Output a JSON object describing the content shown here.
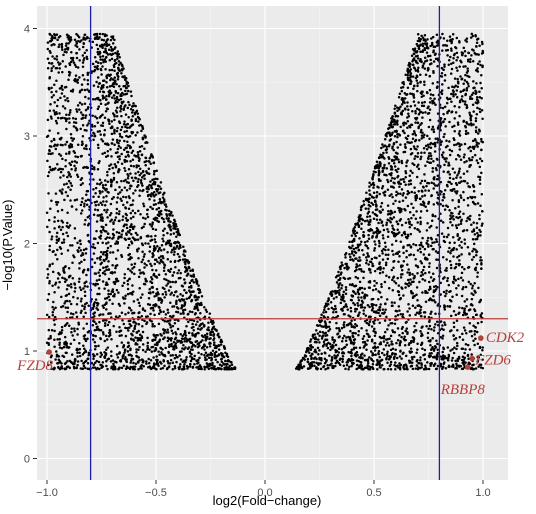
{
  "chart_data": {
    "type": "scatter",
    "title": "",
    "xlabel": "log2(Fold−change)",
    "ylabel": "−log10(P.Value)",
    "xlim": [
      -1.1,
      1.1
    ],
    "ylim": [
      -0.2,
      4.2
    ],
    "x_ticks": [
      -1.0,
      -0.5,
      0.0,
      0.5,
      1.0
    ],
    "x_tick_labels": [
      "−1.0",
      "−0.5",
      "0.0",
      "0.5",
      "1.0"
    ],
    "y_ticks": [
      0,
      1,
      2,
      3,
      4
    ],
    "y_tick_labels": [
      "0",
      "1",
      "2",
      "3",
      "4"
    ],
    "grid": true,
    "background_color": "#ebebeb",
    "point_color": "#000000",
    "highlight_color": "#b5403a",
    "threshold_line_color_vertical": "#1f1fa8",
    "threshold_line_color_horizontal": "#b5403a",
    "vertical_thresholds": [
      -0.8,
      0.8
    ],
    "horizontal_threshold": 1.3,
    "series": [
      {
        "cloud": "down-regulated",
        "x_range": [
          -1.0,
          -0.13
        ],
        "y_range": [
          0.83,
          3.95
        ],
        "density": "dense near the lower inner edge, thinning toward the upper outer corner"
      },
      {
        "cloud": "up-regulated",
        "x_range": [
          0.14,
          1.0
        ],
        "y_range": [
          0.83,
          3.95
        ],
        "density": "dense near the lower inner edge, thinning toward the upper outer corner"
      }
    ],
    "highlighted_points": [
      {
        "gene": "FZD8",
        "x": -0.99,
        "y": 0.99
      },
      {
        "gene": "CDK2",
        "x": 0.99,
        "y": 1.12
      },
      {
        "gene": "FZD6",
        "x": 0.95,
        "y": 0.93
      },
      {
        "gene": "RBBP8",
        "x": 0.93,
        "y": 0.85
      }
    ]
  }
}
